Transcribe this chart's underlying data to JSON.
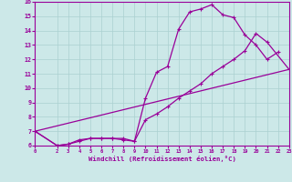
{
  "background_color": "#cce8e8",
  "grid_color": "#aad0d0",
  "line_color": "#990099",
  "xlabel": "Windchill (Refroidissement éolien,°C)",
  "xlim": [
    0,
    23
  ],
  "ylim": [
    6,
    16
  ],
  "xticks": [
    0,
    2,
    3,
    4,
    5,
    6,
    7,
    8,
    9,
    10,
    11,
    12,
    13,
    14,
    15,
    16,
    17,
    18,
    19,
    20,
    21,
    22,
    23
  ],
  "yticks": [
    6,
    7,
    8,
    9,
    10,
    11,
    12,
    13,
    14,
    15,
    16
  ],
  "curve1_x": [
    0,
    2,
    3,
    4,
    5,
    6,
    7,
    8,
    9,
    10,
    11,
    12,
    13,
    14,
    15,
    16,
    17,
    18,
    19,
    20,
    21,
    22
  ],
  "curve1_y": [
    7.0,
    6.0,
    6.1,
    6.4,
    6.5,
    6.5,
    6.5,
    6.4,
    6.3,
    9.3,
    11.1,
    11.5,
    14.1,
    15.3,
    15.5,
    15.8,
    15.1,
    14.9,
    13.7,
    13.0,
    12.0,
    12.5
  ],
  "curve2_x": [
    0,
    2,
    3,
    4,
    5,
    6,
    7,
    8,
    9,
    10,
    11,
    12,
    13,
    14,
    15,
    16,
    17,
    18,
    19,
    20,
    21,
    23
  ],
  "curve2_y": [
    7.0,
    6.0,
    6.1,
    6.3,
    6.5,
    6.5,
    6.5,
    6.5,
    6.3,
    7.8,
    8.2,
    8.7,
    9.3,
    9.8,
    10.3,
    11.0,
    11.5,
    12.0,
    12.6,
    13.8,
    13.2,
    11.3
  ],
  "curve3_x": [
    0,
    23
  ],
  "curve3_y": [
    7.0,
    11.3
  ]
}
